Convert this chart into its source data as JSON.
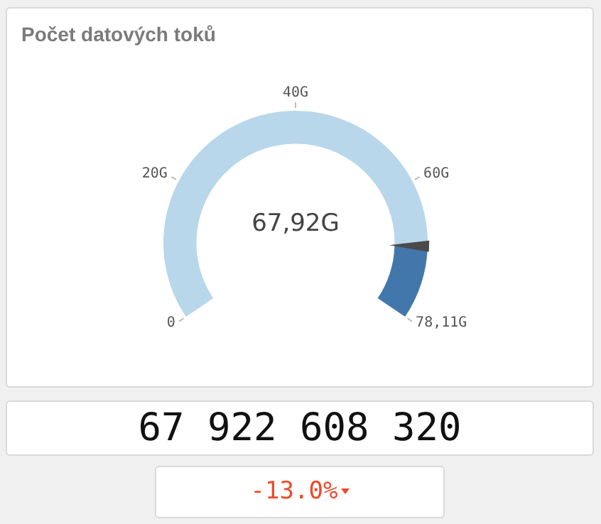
{
  "chart_data": {
    "type": "donut",
    "title": "Počet datových toků",
    "categories": [
      null,
      null
    ],
    "values": [
      86.96,
      13.04
    ],
    "colors": [
      "#b8d7ea",
      "#4177ab"
    ],
    "annotations": [
      "67,92G",
      "67 922 608 320",
      "-13.0%",
      "0",
      "20G",
      "40G",
      "60G",
      "78,11G"
    ]
  }
}
